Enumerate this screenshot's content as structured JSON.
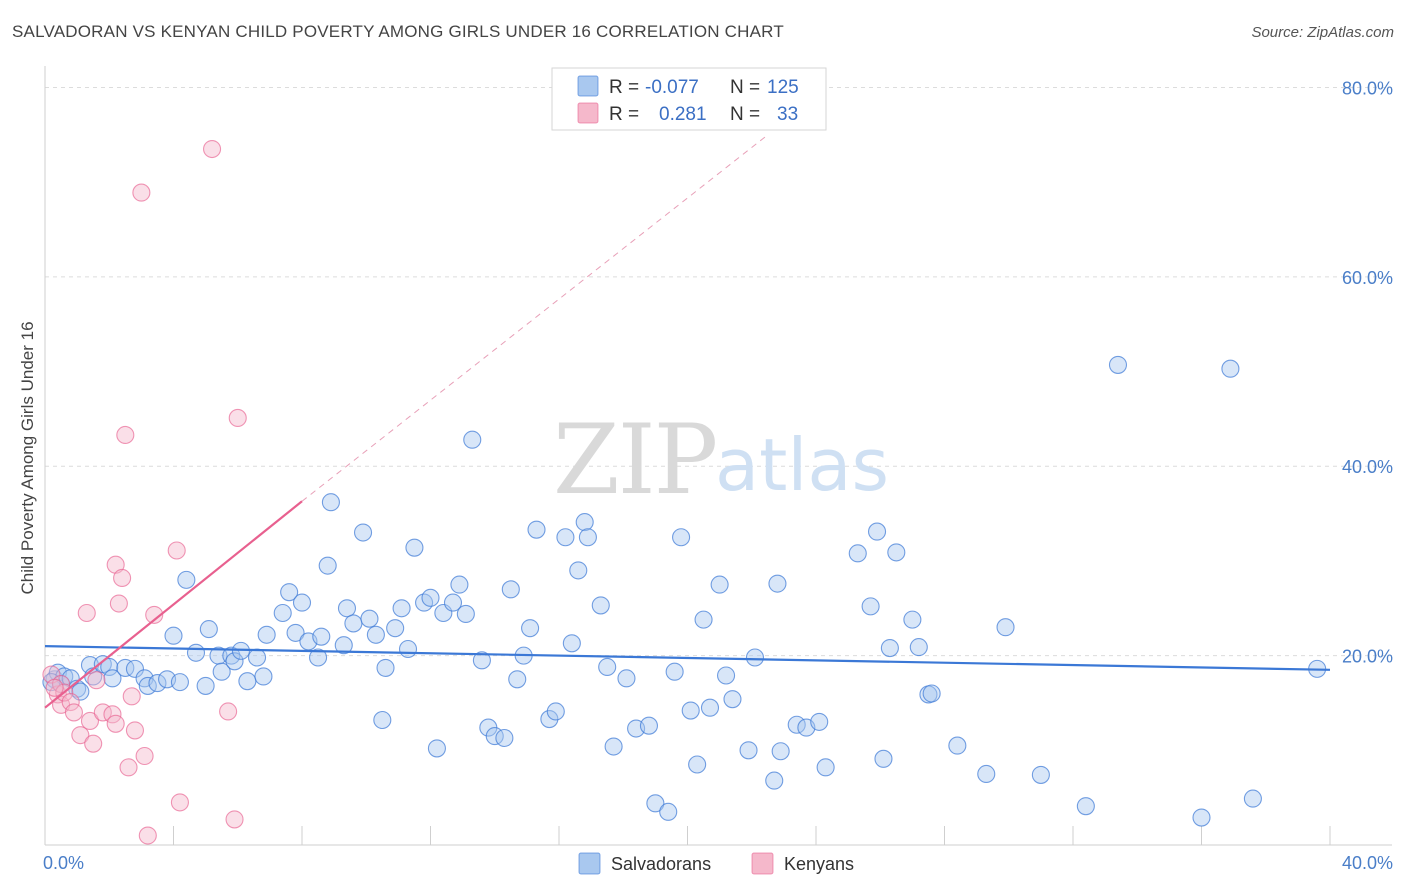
{
  "header": {
    "title": "SALVADORAN VS KENYAN CHILD POVERTY AMONG GIRLS UNDER 16 CORRELATION CHART",
    "source": "Source: ZipAtlas.com"
  },
  "watermark": {
    "zip": "ZIP",
    "atlas": "atlas"
  },
  "legend": {
    "rows": [
      {
        "r_label": "R =",
        "r_value": "-0.077",
        "n_label": "N =",
        "n_value": "125",
        "color": "#a9c8ef"
      },
      {
        "r_label": "R =",
        "r_value": "0.281",
        "n_label": "N =",
        "n_value": "33",
        "color": "#f5b8cb"
      }
    ]
  },
  "bottom_legend": [
    {
      "label": "Salvadorans",
      "color": "#a9c8ef"
    },
    {
      "label": "Kenyans",
      "color": "#f5b8cb"
    }
  ],
  "chart_data": {
    "type": "scatter",
    "title": "SALVADORAN VS KENYAN CHILD POVERTY AMONG GIRLS UNDER 16 CORRELATION CHART",
    "xlabel": "",
    "ylabel": "Child Poverty Among Girls Under 16",
    "xlim": [
      0,
      40
    ],
    "ylim": [
      0,
      81
    ],
    "x_tick_labels": [
      "0.0%",
      "40.0%"
    ],
    "y_ticks": [
      20,
      40,
      60,
      80
    ],
    "y_tick_labels": [
      "20.0%",
      "40.0%",
      "60.0%",
      "80.0%"
    ],
    "grid": true,
    "legend_position": "top-center",
    "colors": {
      "salvadorans": "#3b78d6",
      "kenyans": "#e8608f"
    },
    "series": [
      {
        "name": "Salvadorans",
        "trend": {
          "x": [
            0,
            40
          ],
          "y": [
            21.0,
            18.5
          ]
        },
        "points": [
          [
            0.3,
            17.5
          ],
          [
            0.4,
            18.2
          ],
          [
            0.5,
            17.0
          ],
          [
            0.6,
            17.8
          ],
          [
            0.8,
            17.6
          ],
          [
            1.0,
            16.5
          ],
          [
            1.1,
            16.2
          ],
          [
            1.4,
            19.0
          ],
          [
            1.5,
            17.8
          ],
          [
            1.8,
            19.1
          ],
          [
            2.0,
            18.8
          ],
          [
            2.1,
            17.6
          ],
          [
            2.5,
            18.7
          ],
          [
            2.8,
            18.6
          ],
          [
            3.1,
            17.6
          ],
          [
            3.2,
            16.8
          ],
          [
            3.5,
            17.1
          ],
          [
            3.8,
            17.5
          ],
          [
            4.0,
            22.1
          ],
          [
            4.2,
            17.2
          ],
          [
            4.4,
            28.0
          ],
          [
            4.7,
            20.3
          ],
          [
            5.0,
            16.8
          ],
          [
            5.1,
            22.8
          ],
          [
            5.4,
            20.0
          ],
          [
            5.5,
            18.3
          ],
          [
            5.8,
            20.0
          ],
          [
            5.9,
            19.4
          ],
          [
            6.1,
            20.5
          ],
          [
            6.3,
            17.3
          ],
          [
            6.6,
            19.8
          ],
          [
            6.8,
            17.8
          ],
          [
            6.9,
            22.2
          ],
          [
            7.4,
            24.5
          ],
          [
            7.6,
            26.7
          ],
          [
            7.8,
            22.4
          ],
          [
            8.0,
            25.6
          ],
          [
            8.2,
            21.5
          ],
          [
            8.5,
            19.8
          ],
          [
            8.6,
            22.0
          ],
          [
            8.8,
            29.5
          ],
          [
            8.9,
            36.2
          ],
          [
            9.3,
            21.1
          ],
          [
            9.4,
            25.0
          ],
          [
            9.6,
            23.4
          ],
          [
            9.9,
            33.0
          ],
          [
            10.1,
            23.9
          ],
          [
            10.3,
            22.2
          ],
          [
            10.5,
            13.2
          ],
          [
            10.6,
            18.7
          ],
          [
            10.9,
            22.9
          ],
          [
            11.1,
            25.0
          ],
          [
            11.3,
            20.7
          ],
          [
            11.5,
            31.4
          ],
          [
            11.8,
            25.6
          ],
          [
            12.0,
            26.1
          ],
          [
            12.2,
            10.2
          ],
          [
            12.4,
            24.5
          ],
          [
            12.7,
            25.6
          ],
          [
            12.9,
            27.5
          ],
          [
            13.1,
            24.4
          ],
          [
            13.3,
            42.8
          ],
          [
            13.6,
            19.5
          ],
          [
            13.8,
            12.4
          ],
          [
            14.0,
            11.5
          ],
          [
            14.3,
            11.3
          ],
          [
            14.5,
            27.0
          ],
          [
            14.7,
            17.5
          ],
          [
            14.9,
            20.0
          ],
          [
            15.1,
            22.9
          ],
          [
            15.3,
            33.3
          ],
          [
            15.7,
            13.3
          ],
          [
            15.9,
            14.1
          ],
          [
            16.2,
            32.5
          ],
          [
            16.4,
            21.3
          ],
          [
            16.6,
            29.0
          ],
          [
            16.8,
            34.1
          ],
          [
            16.9,
            32.5
          ],
          [
            17.3,
            25.3
          ],
          [
            17.5,
            18.8
          ],
          [
            17.7,
            10.4
          ],
          [
            18.1,
            17.6
          ],
          [
            18.4,
            12.3
          ],
          [
            18.8,
            12.6
          ],
          [
            19.0,
            4.4
          ],
          [
            19.4,
            3.5
          ],
          [
            19.6,
            18.3
          ],
          [
            19.8,
            32.5
          ],
          [
            20.1,
            14.2
          ],
          [
            20.3,
            8.5
          ],
          [
            20.5,
            23.8
          ],
          [
            20.7,
            14.5
          ],
          [
            21.0,
            27.5
          ],
          [
            21.2,
            17.9
          ],
          [
            21.4,
            15.4
          ],
          [
            21.9,
            10.0
          ],
          [
            22.1,
            19.8
          ],
          [
            22.7,
            6.8
          ],
          [
            22.8,
            27.6
          ],
          [
            22.9,
            9.9
          ],
          [
            23.4,
            12.7
          ],
          [
            23.7,
            12.4
          ],
          [
            24.1,
            13.0
          ],
          [
            24.3,
            8.2
          ],
          [
            25.3,
            30.8
          ],
          [
            25.7,
            25.2
          ],
          [
            25.9,
            33.1
          ],
          [
            26.1,
            9.1
          ],
          [
            26.3,
            20.8
          ],
          [
            26.5,
            30.9
          ],
          [
            27.0,
            23.8
          ],
          [
            27.2,
            20.9
          ],
          [
            27.5,
            15.9
          ],
          [
            27.6,
            16.0
          ],
          [
            28.4,
            10.5
          ],
          [
            29.3,
            7.5
          ],
          [
            29.9,
            23.0
          ],
          [
            31.0,
            7.4
          ],
          [
            32.4,
            4.1
          ],
          [
            33.4,
            50.7
          ],
          [
            36.0,
            2.9
          ],
          [
            36.9,
            50.3
          ],
          [
            37.6,
            4.9
          ],
          [
            39.6,
            18.6
          ],
          [
            0.2,
            17.2
          ]
        ]
      },
      {
        "name": "Kenyans",
        "trend": {
          "x": [
            0,
            8.0
          ],
          "y": [
            14.5,
            36.3
          ]
        },
        "trend_extension": {
          "x": [
            8.0,
            22.5
          ],
          "y": [
            36.3,
            75.0
          ]
        },
        "points": [
          [
            0.2,
            18.0
          ],
          [
            0.4,
            15.9
          ],
          [
            0.5,
            17.0
          ],
          [
            0.5,
            14.8
          ],
          [
            0.6,
            16.1
          ],
          [
            0.8,
            15.1
          ],
          [
            0.9,
            14.0
          ],
          [
            1.1,
            11.6
          ],
          [
            1.3,
            24.5
          ],
          [
            1.4,
            13.1
          ],
          [
            1.5,
            10.7
          ],
          [
            1.6,
            17.4
          ],
          [
            1.8,
            14.0
          ],
          [
            2.1,
            13.8
          ],
          [
            2.2,
            12.8
          ],
          [
            2.2,
            29.6
          ],
          [
            2.3,
            25.5
          ],
          [
            2.4,
            28.2
          ],
          [
            2.5,
            43.3
          ],
          [
            2.6,
            8.2
          ],
          [
            2.7,
            15.7
          ],
          [
            2.8,
            12.1
          ],
          [
            3.0,
            68.9
          ],
          [
            3.1,
            9.4
          ],
          [
            3.2,
            1.0
          ],
          [
            3.4,
            24.3
          ],
          [
            4.1,
            31.1
          ],
          [
            4.2,
            4.5
          ],
          [
            5.2,
            73.5
          ],
          [
            5.7,
            14.1
          ],
          [
            5.9,
            2.7
          ],
          [
            6.0,
            45.1
          ],
          [
            0.3,
            16.6
          ]
        ]
      }
    ]
  }
}
